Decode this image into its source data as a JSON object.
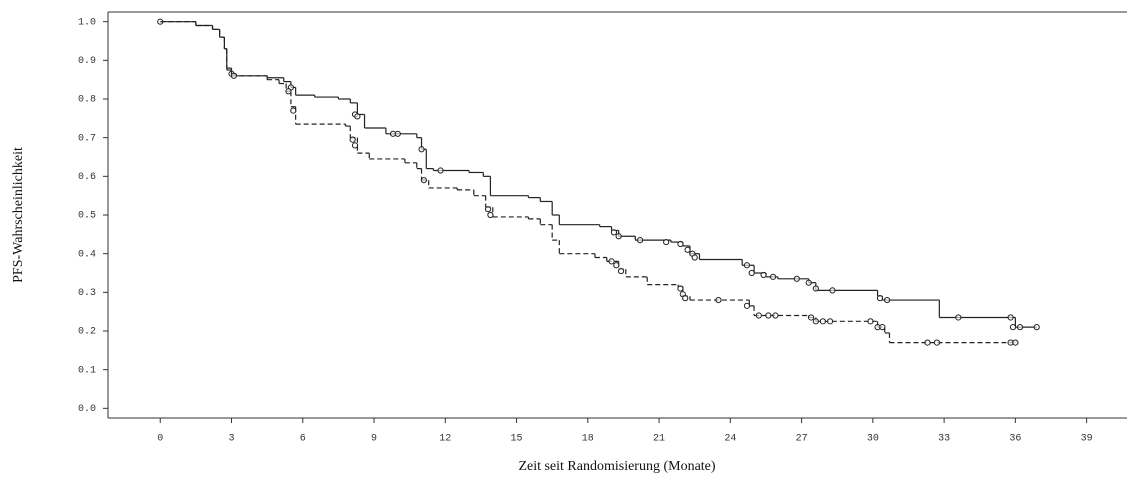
{
  "chart_data": {
    "type": "step",
    "x_label": "Zeit seit Randomisierung (Monate)",
    "y_label": "PFS-Wahrscheinlichkeit",
    "xlim": [
      -2.2,
      40.7
    ],
    "ylim": [
      -0.025,
      1.025
    ],
    "xticks": [
      0,
      3,
      6,
      9,
      12,
      15,
      18,
      21,
      24,
      27,
      30,
      33,
      36,
      39
    ],
    "yticks": [
      {
        "value": 1,
        "label": "1.0"
      },
      0.9,
      0.8,
      0.7,
      0.6,
      0.5,
      0.4,
      0.3,
      0.2,
      0.1,
      {
        "value": 0,
        "label": "0.0"
      }
    ],
    "series": [
      {
        "color": "#222222",
        "line_style": "solid",
        "x": [
          0,
          1.5,
          2.2,
          2.5,
          2.7,
          2.8,
          3.0,
          3.2,
          4.5,
          5.2,
          5.5,
          5.7,
          6.5,
          7.5,
          8.0,
          8.3,
          8.6,
          9.5,
          10.8,
          11.0,
          11.2,
          11.5,
          13.0,
          13.6,
          13.9,
          15.5,
          16.0,
          16.5,
          16.8,
          18.5,
          19.0,
          19.3,
          20.0,
          21.5,
          22.0,
          22.3,
          22.7,
          24.5,
          25.0,
          25.5,
          26.0,
          27.3,
          27.6,
          30.2,
          30.4,
          32.8,
          36.0,
          36.9
        ],
        "values": [
          1.0,
          0.99,
          0.98,
          0.96,
          0.93,
          0.88,
          0.865,
          0.86,
          0.855,
          0.845,
          0.83,
          0.81,
          0.805,
          0.8,
          0.79,
          0.76,
          0.725,
          0.71,
          0.7,
          0.67,
          0.62,
          0.615,
          0.61,
          0.6,
          0.55,
          0.545,
          0.535,
          0.5,
          0.475,
          0.47,
          0.46,
          0.445,
          0.435,
          0.43,
          0.42,
          0.4,
          0.385,
          0.37,
          0.35,
          0.34,
          0.335,
          0.325,
          0.305,
          0.29,
          0.28,
          0.235,
          0.21,
          0.21
        ],
        "censored": {
          "x": [
            0,
            3.0,
            5.5,
            8.2,
            8.3,
            9.8,
            10.0,
            11.0,
            11.8,
            19.1,
            19.3,
            20.2,
            21.3,
            21.9,
            22.2,
            22.4,
            22.5,
            24.7,
            24.9,
            25.4,
            25.8,
            26.8,
            27.3,
            27.6,
            28.3,
            30.3,
            30.6,
            33.6,
            35.8,
            35.9,
            36.2,
            36.9
          ],
          "values": [
            1.0,
            0.865,
            0.83,
            0.76,
            0.755,
            0.71,
            0.71,
            0.67,
            0.615,
            0.455,
            0.445,
            0.435,
            0.43,
            0.425,
            0.41,
            0.4,
            0.39,
            0.37,
            0.35,
            0.345,
            0.34,
            0.335,
            0.325,
            0.31,
            0.305,
            0.285,
            0.28,
            0.235,
            0.235,
            0.21,
            0.21,
            0.21
          ]
        }
      },
      {
        "color": "#222222",
        "line_style": "dash",
        "x": [
          0,
          1.5,
          2.2,
          2.5,
          2.7,
          2.8,
          3.0,
          4.5,
          5.0,
          5.3,
          5.5,
          5.7,
          7.8,
          8.0,
          8.3,
          8.8,
          10.3,
          10.8,
          11.0,
          11.3,
          12.5,
          13.2,
          13.7,
          14.0,
          15.5,
          16.0,
          16.5,
          16.8,
          18.3,
          18.8,
          19.3,
          19.6,
          20.5,
          21.8,
          22.0,
          22.3,
          24.8,
          25.0,
          27.3,
          27.6,
          30.2,
          30.5,
          30.7,
          36.0
        ],
        "values": [
          1.0,
          0.99,
          0.98,
          0.96,
          0.93,
          0.875,
          0.86,
          0.85,
          0.84,
          0.82,
          0.78,
          0.735,
          0.73,
          0.7,
          0.66,
          0.645,
          0.635,
          0.62,
          0.59,
          0.57,
          0.565,
          0.55,
          0.52,
          0.495,
          0.49,
          0.475,
          0.435,
          0.4,
          0.39,
          0.38,
          0.36,
          0.34,
          0.32,
          0.315,
          0.29,
          0.28,
          0.265,
          0.24,
          0.235,
          0.225,
          0.21,
          0.195,
          0.17,
          0.17
        ],
        "censored": {
          "x": [
            3.1,
            5.4,
            5.6,
            8.1,
            8.2,
            11.1,
            13.8,
            13.9,
            19.0,
            19.2,
            19.4,
            21.9,
            22.0,
            22.1,
            23.5,
            24.7,
            25.2,
            25.6,
            25.9,
            27.4,
            27.6,
            27.9,
            28.2,
            29.9,
            30.2,
            30.4,
            32.3,
            32.7,
            35.8,
            36.0
          ],
          "values": [
            0.86,
            0.82,
            0.77,
            0.695,
            0.68,
            0.59,
            0.515,
            0.5,
            0.38,
            0.37,
            0.355,
            0.31,
            0.295,
            0.285,
            0.28,
            0.265,
            0.24,
            0.24,
            0.24,
            0.235,
            0.225,
            0.225,
            0.225,
            0.225,
            0.21,
            0.21,
            0.17,
            0.17,
            0.17,
            0.17
          ]
        }
      }
    ]
  }
}
